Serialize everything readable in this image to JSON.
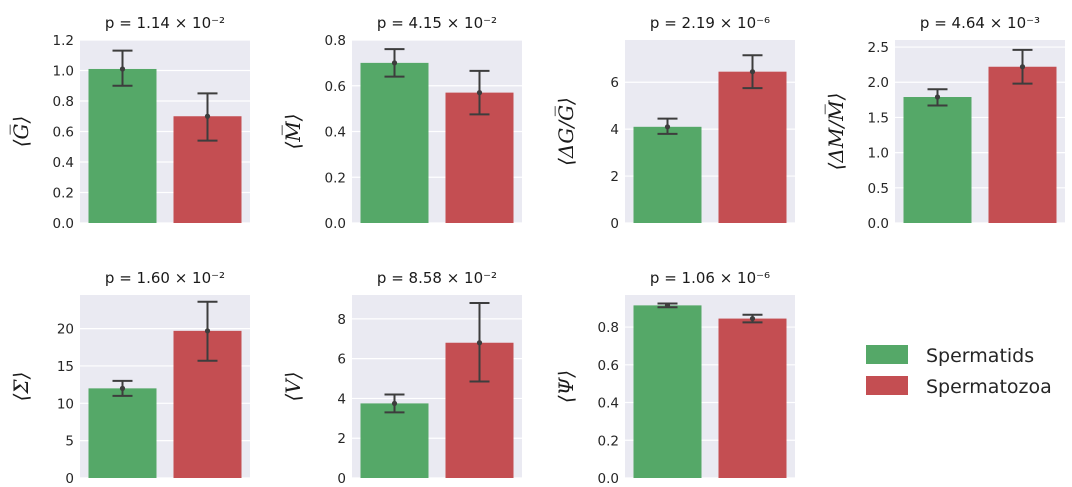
{
  "legend": {
    "items": [
      {
        "label": "Spermatids",
        "color": "#55a868"
      },
      {
        "label": "Spermatozoa",
        "color": "#c44e52"
      }
    ]
  },
  "chart_data": [
    {
      "type": "bar",
      "title": "p = 1.14 × 10⁻²",
      "ylabel": "⟨G̅⟩",
      "categories": [
        "Spermatids",
        "Spermatozoa"
      ],
      "values": [
        1.01,
        0.7
      ],
      "error_low": [
        0.9,
        0.54
      ],
      "error_high": [
        1.13,
        0.85
      ],
      "ylim": [
        0,
        1.2
      ],
      "yticks": [
        0.0,
        0.2,
        0.4,
        0.6,
        0.8,
        1.0,
        1.2
      ],
      "tick_decimals": 1
    },
    {
      "type": "bar",
      "title": "p = 4.15 × 10⁻²",
      "ylabel": "⟨M̅⟩",
      "categories": [
        "Spermatids",
        "Spermatozoa"
      ],
      "values": [
        0.7,
        0.57
      ],
      "error_low": [
        0.64,
        0.475
      ],
      "error_high": [
        0.76,
        0.665
      ],
      "ylim": [
        0,
        0.8
      ],
      "yticks": [
        0.0,
        0.2,
        0.4,
        0.6,
        0.8
      ],
      "tick_decimals": 1
    },
    {
      "type": "bar",
      "title": "p = 2.19 × 10⁻⁶",
      "ylabel": "⟨ΔG/G̅⟩",
      "categories": [
        "Spermatids",
        "Spermatozoa"
      ],
      "values": [
        4.1,
        6.45
      ],
      "error_low": [
        3.8,
        5.75
      ],
      "error_high": [
        4.45,
        7.15
      ],
      "ylim": [
        0,
        7.8
      ],
      "yticks": [
        0,
        2,
        4,
        6
      ],
      "tick_decimals": 0
    },
    {
      "type": "bar",
      "title": "p = 4.64 × 10⁻³",
      "ylabel": "⟨ΔM/M̅⟩",
      "categories": [
        "Spermatids",
        "Spermatozoa"
      ],
      "values": [
        1.79,
        2.22
      ],
      "error_low": [
        1.67,
        1.98
      ],
      "error_high": [
        1.9,
        2.46
      ],
      "ylim": [
        0,
        2.6
      ],
      "yticks": [
        0.0,
        0.5,
        1.0,
        1.5,
        2.0,
        2.5
      ],
      "tick_decimals": 1
    },
    {
      "type": "bar",
      "title": "p = 1.60 × 10⁻²",
      "ylabel": "⟨Σ⟩",
      "categories": [
        "Spermatids",
        "Spermatozoa"
      ],
      "values": [
        12.0,
        19.7
      ],
      "error_low": [
        11.0,
        15.7
      ],
      "error_high": [
        13.0,
        23.6
      ],
      "ylim": [
        0,
        24.5
      ],
      "yticks": [
        0,
        5,
        10,
        15,
        20
      ],
      "tick_decimals": 0
    },
    {
      "type": "bar",
      "title": "p = 8.58 × 10⁻²",
      "ylabel": "⟨V⟩",
      "categories": [
        "Spermatids",
        "Spermatozoa"
      ],
      "values": [
        3.75,
        6.8
      ],
      "error_low": [
        3.3,
        4.85
      ],
      "error_high": [
        4.2,
        8.8
      ],
      "ylim": [
        0,
        9.2
      ],
      "yticks": [
        0,
        2,
        4,
        6,
        8
      ],
      "tick_decimals": 0
    },
    {
      "type": "bar",
      "title": "p = 1.06 × 10⁻⁶",
      "ylabel": "⟨Ψ⟩",
      "categories": [
        "Spermatids",
        "Spermatozoa"
      ],
      "values": [
        0.915,
        0.845
      ],
      "error_low": [
        0.905,
        0.825
      ],
      "error_high": [
        0.925,
        0.865
      ],
      "ylim": [
        0,
        0.97
      ],
      "yticks": [
        0.0,
        0.2,
        0.4,
        0.6,
        0.8
      ],
      "tick_decimals": 1
    }
  ]
}
